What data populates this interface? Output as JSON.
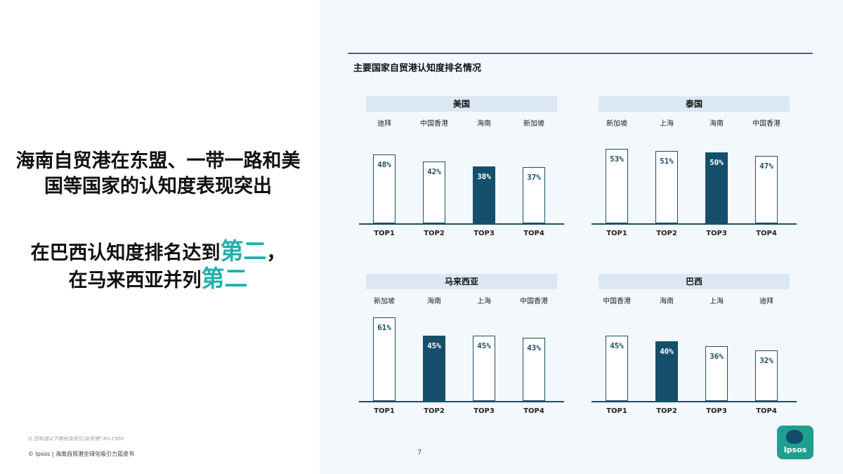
{
  "headline": {
    "line1": "海南自贸港在东盟、一带一路和美国等国家的认知度表现突出",
    "line2_prefix": "在巴西认知度排名达到",
    "line2_accent": "第二",
    "line2_suffix": "，",
    "line3_prefix": "在马来西亚并列",
    "line3_accent": "第二"
  },
  "footnote": "Q.您知道以下哪些自贸区/自贸港?    N=1500",
  "footer": "© Ipsos | 海南自贸港全球化吸引力蓝皮书",
  "page_number": "7",
  "section_title": "主要国家自贸港认知度排名情况",
  "logo_text": "Ipsos",
  "colors": {
    "highlight": "#154f6b",
    "accent": "#1fb0ab",
    "outline": "#1f4e6b"
  },
  "chart_data": [
    {
      "type": "bar",
      "title": "美国",
      "categories": [
        "迪拜",
        "中国香港",
        "海南",
        "新加坡"
      ],
      "ranks": [
        "TOP1",
        "TOP2",
        "TOP3",
        "TOP4"
      ],
      "values": [
        48,
        42,
        38,
        37
      ],
      "labels": [
        "48%",
        "42%",
        "38%",
        "37%"
      ],
      "highlight_index": 2
    },
    {
      "type": "bar",
      "title": "泰国",
      "categories": [
        "新加坡",
        "上海",
        "海南",
        "中国香港"
      ],
      "ranks": [
        "TOP1",
        "TOP2",
        "TOP3",
        "TOP4"
      ],
      "values": [
        53,
        51,
        50,
        47
      ],
      "labels": [
        "53%",
        "51%",
        "50%",
        "47%"
      ],
      "highlight_index": 2
    },
    {
      "type": "bar",
      "title": "马来西亚",
      "categories": [
        "新加坡",
        "海南",
        "上海",
        "中国香港"
      ],
      "ranks": [
        "TOP1",
        "TOP2",
        "TOP3",
        "TOP4"
      ],
      "values": [
        61,
        45,
        45,
        43
      ],
      "labels": [
        "61%",
        "45%",
        "45%",
        "43%"
      ],
      "highlight_index": 1
    },
    {
      "type": "bar",
      "title": "巴西",
      "categories": [
        "中国香港",
        "海南",
        "上海",
        "迪拜"
      ],
      "ranks": [
        "TOP1",
        "TOP2",
        "TOP3",
        "TOP4"
      ],
      "values": [
        45,
        40,
        36,
        32
      ],
      "labels": [
        "45%",
        "40%",
        "36%",
        "32%"
      ],
      "highlight_index": 1
    }
  ]
}
